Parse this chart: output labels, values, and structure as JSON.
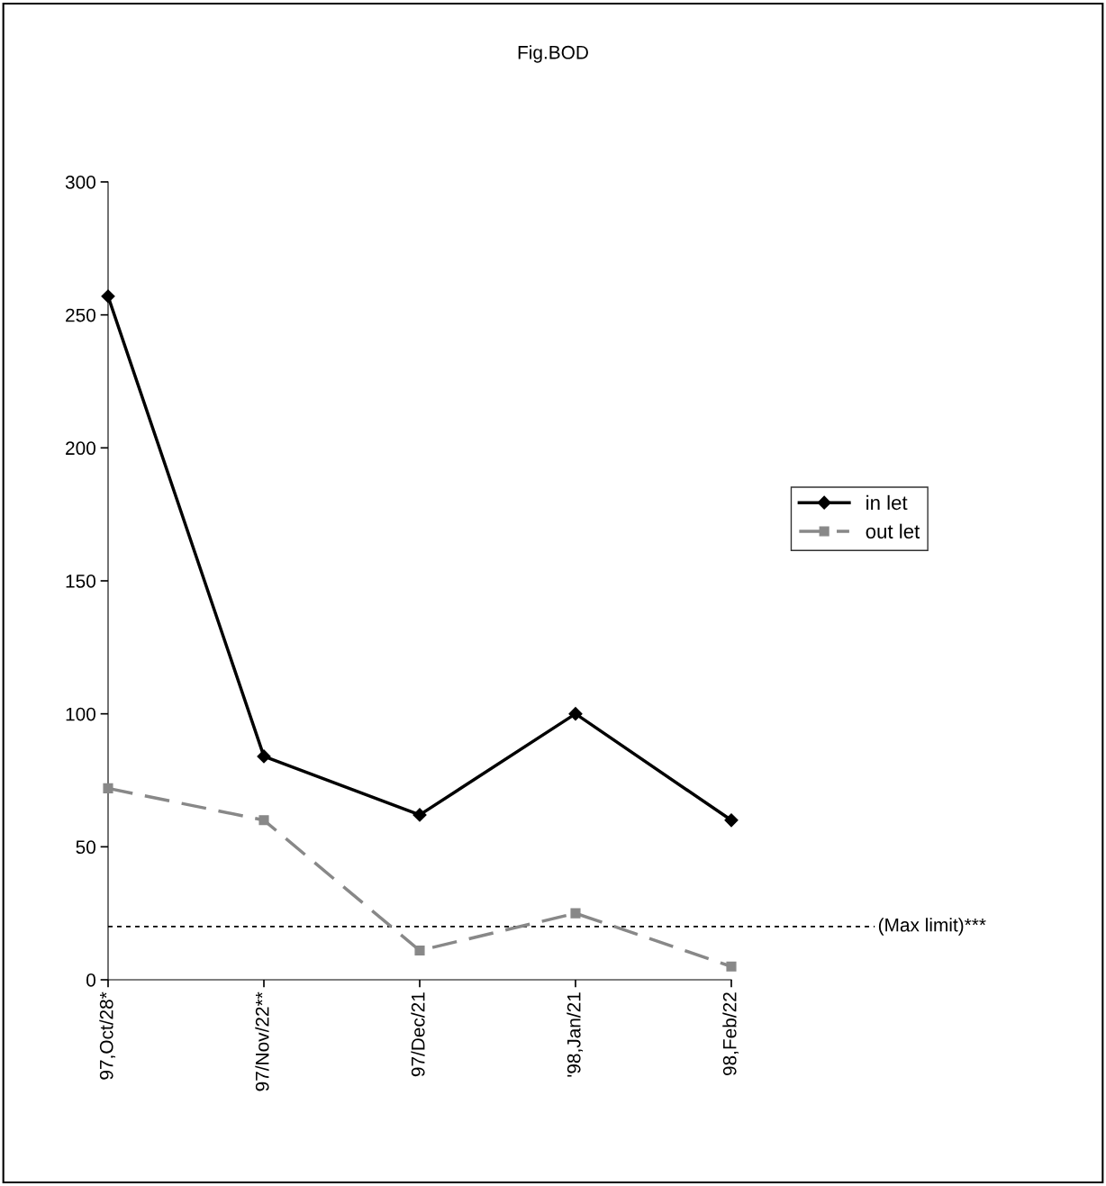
{
  "chart_data": {
    "type": "line",
    "title": "Fig.BOD",
    "categories": [
      "97,Oct/28*",
      "97/Nov/22**",
      "97/Dec/21",
      "'98,Jan/21",
      "98,Feb/22"
    ],
    "series": [
      {
        "name": "in let",
        "color": "#000000",
        "values": [
          257,
          84,
          62,
          100,
          60
        ],
        "marker": "diamond",
        "line_style": "solid"
      },
      {
        "name": "out let",
        "color": "#888888",
        "values": [
          72,
          60,
          11,
          25,
          5
        ],
        "marker": "square",
        "line_style": "dashed"
      }
    ],
    "ylim": [
      0,
      300
    ],
    "yticks": [
      0,
      50,
      100,
      150,
      200,
      250,
      300
    ],
    "ref_lines": [
      {
        "axis": "y",
        "value": 20,
        "label": "(Max limit)***",
        "line_style": "dotted",
        "color": "#000000"
      }
    ],
    "legend": "right",
    "grid": false
  }
}
